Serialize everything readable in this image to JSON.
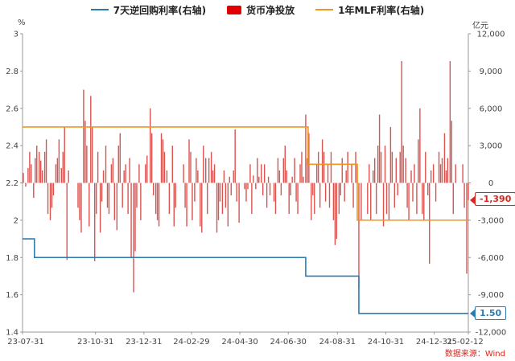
{
  "legend": [
    {
      "name": "7天逆回购利率(右轴)",
      "color": "#2e7bb0",
      "kind": "line"
    },
    {
      "name": "货币净投放",
      "color": "#e10000",
      "kind": "box"
    },
    {
      "name": "1年MLF利率(右轴)",
      "color": "#f0961e",
      "kind": "line"
    }
  ],
  "left_unit": "%",
  "right_unit": "亿元",
  "source_note": "数据来源：Wind",
  "end_tags": {
    "net_injection": "-1,390",
    "repo_rate": "1.50"
  },
  "chart_data": {
    "type": "bar",
    "title": "",
    "colors": {
      "bars": "#d9534f",
      "repo": "#2e7bb0",
      "mlf": "#f0961e"
    },
    "left_axis": {
      "min": 1.4,
      "max": 3.0,
      "ticks": [
        1.4,
        1.6,
        1.8,
        2,
        2.2,
        2.4,
        2.6,
        2.8,
        3
      ]
    },
    "right_axis": {
      "min": -12000,
      "max": 12000,
      "ticks": [
        "-12,000",
        "-9,000",
        "-6,000",
        "-3,000",
        "0",
        "3,000",
        "6,000",
        "9,000",
        "12,000"
      ]
    },
    "x_axis": {
      "start": "2023-07-31",
      "end": "2025-02-12",
      "tick_labels": [
        "23-07-31",
        "23-10-31",
        "23-12-31",
        "24-02-29",
        "24-04-30",
        "24-06-30",
        "24-08-31",
        "24-10-31",
        "24-12-31",
        "25-02-12"
      ],
      "tick_dates": [
        "2023-07-31",
        "2023-10-31",
        "2023-12-31",
        "2024-02-29",
        "2024-04-30",
        "2024-06-30",
        "2024-08-31",
        "2024-10-31",
        "2024-12-31",
        "2025-02-12"
      ]
    },
    "series": [
      {
        "name": "7天逆回购利率(右轴)",
        "kind": "step",
        "points": [
          [
            "2023-07-31",
            1.9
          ],
          [
            "2023-08-15",
            1.8
          ],
          [
            "2024-07-22",
            1.7
          ],
          [
            "2024-09-27",
            1.5
          ],
          [
            "2025-02-12",
            1.5
          ]
        ]
      },
      {
        "name": "1年MLF利率(右轴)",
        "kind": "step",
        "points": [
          [
            "2023-07-31",
            2.5
          ],
          [
            "2023-08-15",
            2.5
          ],
          [
            "2024-07-25",
            2.3
          ],
          [
            "2024-09-25",
            2.0
          ],
          [
            "2025-02-12",
            2.0
          ]
        ]
      },
      {
        "name": "货币净投放",
        "kind": "bar",
        "points": [
          [
            "2023-08-01",
            800
          ],
          [
            "2023-08-04",
            -300
          ],
          [
            "2023-08-07",
            1200
          ],
          [
            "2023-08-09",
            2500
          ],
          [
            "2023-08-11",
            1500
          ],
          [
            "2023-08-14",
            -1200
          ],
          [
            "2023-08-16",
            2000
          ],
          [
            "2023-08-18",
            3000
          ],
          [
            "2023-08-21",
            2500
          ],
          [
            "2023-08-23",
            1800
          ],
          [
            "2023-08-25",
            1000
          ],
          [
            "2023-08-28",
            2500
          ],
          [
            "2023-08-30",
            3500
          ],
          [
            "2023-09-01",
            -2500
          ],
          [
            "2023-09-04",
            -3000
          ],
          [
            "2023-09-06",
            -2000
          ],
          [
            "2023-09-08",
            -1000
          ],
          [
            "2023-09-11",
            1500
          ],
          [
            "2023-09-13",
            2000
          ],
          [
            "2023-09-15",
            3500
          ],
          [
            "2023-09-18",
            1200
          ],
          [
            "2023-09-20",
            2500
          ],
          [
            "2023-09-22",
            4500
          ],
          [
            "2023-09-25",
            -6200
          ],
          [
            "2023-09-27",
            1000
          ],
          [
            "2023-10-09",
            -2000
          ],
          [
            "2023-10-11",
            -3000
          ],
          [
            "2023-10-13",
            -4000
          ],
          [
            "2023-10-16",
            7500
          ],
          [
            "2023-10-18",
            5000
          ],
          [
            "2023-10-20",
            3000
          ],
          [
            "2023-10-23",
            -3500
          ],
          [
            "2023-10-25",
            7000
          ],
          [
            "2023-10-27",
            4500
          ],
          [
            "2023-10-30",
            -6300
          ],
          [
            "2023-11-01",
            -2500
          ],
          [
            "2023-11-03",
            2500
          ],
          [
            "2023-11-06",
            -4000
          ],
          [
            "2023-11-08",
            -1500
          ],
          [
            "2023-11-10",
            1000
          ],
          [
            "2023-11-13",
            3000
          ],
          [
            "2023-11-15",
            -2000
          ],
          [
            "2023-11-17",
            -2500
          ],
          [
            "2023-11-20",
            1500
          ],
          [
            "2023-11-22",
            2000
          ],
          [
            "2023-11-24",
            -3000
          ],
          [
            "2023-11-27",
            -3800
          ],
          [
            "2023-11-29",
            3000
          ],
          [
            "2023-12-01",
            4000
          ],
          [
            "2023-12-04",
            -2000
          ],
          [
            "2023-12-06",
            1000
          ],
          [
            "2023-12-08",
            1500
          ],
          [
            "2023-12-11",
            -2500
          ],
          [
            "2023-12-13",
            2000
          ],
          [
            "2023-12-15",
            -6000
          ],
          [
            "2023-12-18",
            -8800
          ],
          [
            "2023-12-20",
            -5500
          ],
          [
            "2023-12-22",
            -2000
          ],
          [
            "2023-12-25",
            1500
          ],
          [
            "2023-12-27",
            -3000
          ],
          [
            "2024-01-02",
            1500
          ],
          [
            "2024-01-04",
            2200
          ],
          [
            "2024-01-08",
            6000
          ],
          [
            "2024-01-10",
            4000
          ],
          [
            "2024-01-12",
            -1000
          ],
          [
            "2024-01-15",
            -2500
          ],
          [
            "2024-01-17",
            -3000
          ],
          [
            "2024-01-19",
            -3500
          ],
          [
            "2024-01-22",
            4000
          ],
          [
            "2024-01-24",
            3500
          ],
          [
            "2024-01-26",
            2500
          ],
          [
            "2024-01-29",
            1000
          ],
          [
            "2024-02-01",
            -2500
          ],
          [
            "2024-02-05",
            3000
          ],
          [
            "2024-02-07",
            -3500
          ],
          [
            "2024-02-09",
            -2000
          ],
          [
            "2024-02-19",
            1500
          ],
          [
            "2024-02-21",
            -2000
          ],
          [
            "2024-02-23",
            -3500
          ],
          [
            "2024-02-26",
            3500
          ],
          [
            "2024-02-28",
            2500
          ],
          [
            "2024-03-01",
            -3000
          ],
          [
            "2024-03-04",
            -1500
          ],
          [
            "2024-03-06",
            2000
          ],
          [
            "2024-03-08",
            1000
          ],
          [
            "2024-03-11",
            -3500
          ],
          [
            "2024-03-13",
            -4000
          ],
          [
            "2024-03-15",
            3000
          ],
          [
            "2024-03-18",
            2000
          ],
          [
            "2024-03-20",
            -2500
          ],
          [
            "2024-03-22",
            2000
          ],
          [
            "2024-03-25",
            2500
          ],
          [
            "2024-03-27",
            1000
          ],
          [
            "2024-03-29",
            1500
          ],
          [
            "2024-04-01",
            -4000
          ],
          [
            "2024-04-03",
            -3000
          ],
          [
            "2024-04-05",
            -1500
          ],
          [
            "2024-04-08",
            -2500
          ],
          [
            "2024-04-10",
            1000
          ],
          [
            "2024-04-12",
            -2000
          ],
          [
            "2024-04-15",
            -3500
          ],
          [
            "2024-04-17",
            500
          ],
          [
            "2024-04-19",
            -1000
          ],
          [
            "2024-04-22",
            1000
          ],
          [
            "2024-04-24",
            4300
          ],
          [
            "2024-04-26",
            -1500
          ],
          [
            "2024-04-29",
            -3200
          ],
          [
            "2024-05-06",
            -500
          ],
          [
            "2024-05-08",
            -1500
          ],
          [
            "2024-05-10",
            -500
          ],
          [
            "2024-05-13",
            1500
          ],
          [
            "2024-05-15",
            -2500
          ],
          [
            "2024-05-17",
            600
          ],
          [
            "2024-05-20",
            -500
          ],
          [
            "2024-05-22",
            2000
          ],
          [
            "2024-05-24",
            500
          ],
          [
            "2024-05-27",
            1500
          ],
          [
            "2024-05-29",
            -1000
          ],
          [
            "2024-05-31",
            1500
          ],
          [
            "2024-06-03",
            -2000
          ],
          [
            "2024-06-05",
            500
          ],
          [
            "2024-06-07",
            -1000
          ],
          [
            "2024-06-12",
            -1500
          ],
          [
            "2024-06-14",
            -2500
          ],
          [
            "2024-06-17",
            2000
          ],
          [
            "2024-06-19",
            1000
          ],
          [
            "2024-06-21",
            -1000
          ],
          [
            "2024-06-24",
            2000
          ],
          [
            "2024-06-26",
            3000
          ],
          [
            "2024-06-28",
            1000
          ],
          [
            "2024-07-01",
            -2500
          ],
          [
            "2024-07-03",
            -1000
          ],
          [
            "2024-07-05",
            500
          ],
          [
            "2024-07-08",
            2000
          ],
          [
            "2024-07-10",
            -1500
          ],
          [
            "2024-07-12",
            -2500
          ],
          [
            "2024-07-15",
            1500
          ],
          [
            "2024-07-17",
            2500
          ],
          [
            "2024-07-19",
            500
          ],
          [
            "2024-07-22",
            5500
          ],
          [
            "2024-07-24",
            2000
          ],
          [
            "2024-07-26",
            4000
          ],
          [
            "2024-07-29",
            -3000
          ],
          [
            "2024-07-31",
            -1000
          ],
          [
            "2024-08-02",
            -2500
          ],
          [
            "2024-08-05",
            1500
          ],
          [
            "2024-08-07",
            2500
          ],
          [
            "2024-08-09",
            -2000
          ],
          [
            "2024-08-12",
            3500
          ],
          [
            "2024-08-14",
            2500
          ],
          [
            "2024-08-16",
            -1500
          ],
          [
            "2024-08-19",
            1500
          ],
          [
            "2024-08-21",
            -2000
          ],
          [
            "2024-08-23",
            2500
          ],
          [
            "2024-08-26",
            -3000
          ],
          [
            "2024-08-28",
            -5000
          ],
          [
            "2024-08-30",
            -4500
          ],
          [
            "2024-09-02",
            -2500
          ],
          [
            "2024-09-04",
            -1000
          ],
          [
            "2024-09-06",
            2000
          ],
          [
            "2024-09-09",
            -1500
          ],
          [
            "2024-09-11",
            1000
          ],
          [
            "2024-09-13",
            2500
          ],
          [
            "2024-09-18",
            1500
          ],
          [
            "2024-09-20",
            -2000
          ],
          [
            "2024-09-23",
            2500
          ],
          [
            "2024-09-25",
            1500
          ],
          [
            "2024-09-27",
            -8500
          ],
          [
            "2024-09-30",
            -3000
          ],
          [
            "2024-10-08",
            -2500
          ],
          [
            "2024-10-10",
            1500
          ],
          [
            "2024-10-12",
            -3000
          ],
          [
            "2024-10-15",
            1000
          ],
          [
            "2024-10-17",
            2000
          ],
          [
            "2024-10-19",
            -2500
          ],
          [
            "2024-10-21",
            3000
          ],
          [
            "2024-10-23",
            5500
          ],
          [
            "2024-10-25",
            2500
          ],
          [
            "2024-10-28",
            -3500
          ],
          [
            "2024-10-30",
            3000
          ],
          [
            "2024-11-01",
            -2500
          ],
          [
            "2024-11-04",
            -3000
          ],
          [
            "2024-11-06",
            4500
          ],
          [
            "2024-11-08",
            2500
          ],
          [
            "2024-11-11",
            -2000
          ],
          [
            "2024-11-13",
            2000
          ],
          [
            "2024-11-15",
            -1000
          ],
          [
            "2024-11-18",
            2500
          ],
          [
            "2024-11-20",
            9800
          ],
          [
            "2024-11-22",
            3000
          ],
          [
            "2024-11-25",
            2000
          ],
          [
            "2024-11-27",
            -2000
          ],
          [
            "2024-11-29",
            -3000
          ],
          [
            "2024-12-02",
            1000
          ],
          [
            "2024-12-04",
            -1500
          ],
          [
            "2024-12-06",
            1500
          ],
          [
            "2024-12-09",
            -2500
          ],
          [
            "2024-12-11",
            3500
          ],
          [
            "2024-12-13",
            6000
          ],
          [
            "2024-12-16",
            -2500
          ],
          [
            "2024-12-18",
            -3000
          ],
          [
            "2024-12-20",
            2500
          ],
          [
            "2024-12-23",
            -1000
          ],
          [
            "2024-12-25",
            -6500
          ],
          [
            "2024-12-27",
            1000
          ],
          [
            "2024-12-30",
            1500
          ],
          [
            "2025-01-02",
            -1500
          ],
          [
            "2025-01-06",
            2500
          ],
          [
            "2025-01-08",
            1500
          ],
          [
            "2025-01-10",
            2000
          ],
          [
            "2025-01-13",
            4000
          ],
          [
            "2025-01-15",
            1000
          ],
          [
            "2025-01-17",
            2000
          ],
          [
            "2025-01-20",
            9800
          ],
          [
            "2025-01-22",
            5000
          ],
          [
            "2025-01-24",
            -2500
          ],
          [
            "2025-01-27",
            1500
          ],
          [
            "2025-02-05",
            1500
          ],
          [
            "2025-02-07",
            -2000
          ],
          [
            "2025-02-10",
            -7300
          ],
          [
            "2025-02-12",
            -1390
          ]
        ]
      }
    ]
  }
}
